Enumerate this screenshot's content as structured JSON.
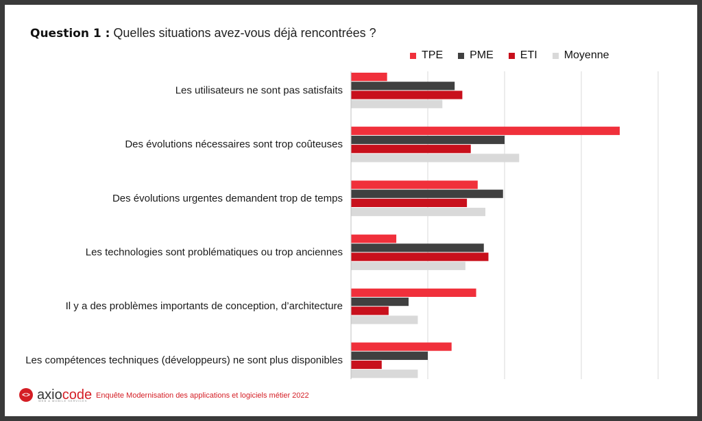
{
  "question": {
    "label": "Question 1 :",
    "text": "Quelles situations avez-vous déjà rencontrées ?"
  },
  "footer": {
    "logo_main": "axio",
    "logo_accent": "code",
    "logo_tagline": "WEB & MOBILE SERVICES",
    "caption": "Enquête Modernisation des applications et logiciels métier 2022"
  },
  "colors": {
    "TPE": "#f0303b",
    "PME": "#404040",
    "ETI": "#c8101c",
    "Moyenne": "#d9d9d9",
    "grid": "#d9d9d9"
  },
  "chart_data": {
    "type": "bar",
    "orientation": "horizontal",
    "title": "",
    "xlabel": "",
    "ylabel": "",
    "xlim": [
      0,
      40
    ],
    "grid": true,
    "tick_labels_shown": false,
    "legend_placement": "top-right",
    "categories": [
      "Les utilisateurs ne sont pas satisfaits",
      "Des évolutions nécessaires sont trop coûteuses",
      "Des évolutions urgentes demandent trop de temps",
      "Les technologies sont problématiques ou trop anciennes",
      "Il y a des problèmes importants de conception, d’architecture",
      "Les compétences techniques (développeurs) ne sont plus disponibles"
    ],
    "series": [
      {
        "name": "TPE",
        "values": [
          4.7,
          35.0,
          16.5,
          5.9,
          16.3,
          13.1
        ]
      },
      {
        "name": "PME",
        "values": [
          13.5,
          20.0,
          19.8,
          17.3,
          7.5,
          10.0
        ]
      },
      {
        "name": "ETI",
        "values": [
          14.5,
          15.6,
          15.1,
          17.9,
          4.9,
          4.0
        ]
      },
      {
        "name": "Moyenne",
        "values": [
          11.9,
          21.9,
          17.5,
          14.9,
          8.7,
          8.7
        ]
      }
    ]
  }
}
